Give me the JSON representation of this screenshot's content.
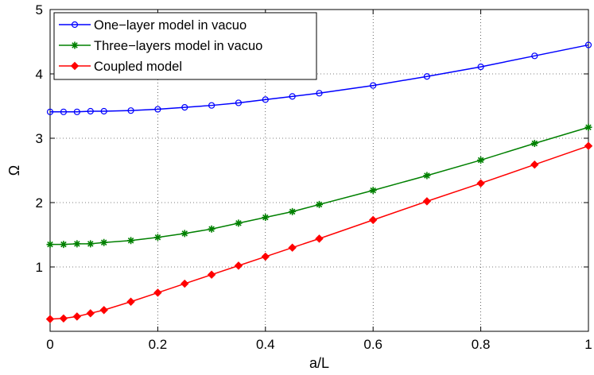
{
  "chart_data": {
    "type": "line",
    "title": "",
    "xlabel": "a/L",
    "ylabel": "Ω",
    "xlim": [
      0,
      1
    ],
    "ylim": [
      0,
      5
    ],
    "xticks": [
      0,
      0.2,
      0.4,
      0.6,
      0.8,
      1
    ],
    "xtick_labels": [
      "0",
      "0.2",
      "0.4",
      "0.6",
      "0.8",
      "1"
    ],
    "yticks": [
      1,
      2,
      3,
      4,
      5
    ],
    "ytick_labels": [
      "1",
      "2",
      "3",
      "4",
      "5"
    ],
    "grid": true,
    "legend_position": "top-left",
    "x": [
      0,
      0.025,
      0.05,
      0.075,
      0.1,
      0.15,
      0.2,
      0.25,
      0.3,
      0.35,
      0.4,
      0.45,
      0.5,
      0.6,
      0.7,
      0.8,
      0.9,
      1.0
    ],
    "series": [
      {
        "name": "One−layer model in vacuo",
        "color": "#0000ff",
        "marker": "circle",
        "values": [
          3.41,
          3.41,
          3.41,
          3.42,
          3.42,
          3.43,
          3.45,
          3.48,
          3.51,
          3.55,
          3.6,
          3.65,
          3.7,
          3.82,
          3.96,
          4.11,
          4.28,
          4.45
        ]
      },
      {
        "name": "Three−layers model in vacuo",
        "color": "#008000",
        "marker": "star",
        "values": [
          1.35,
          1.35,
          1.36,
          1.36,
          1.38,
          1.41,
          1.46,
          1.52,
          1.59,
          1.68,
          1.77,
          1.86,
          1.97,
          2.19,
          2.42,
          2.66,
          2.92,
          3.17
        ]
      },
      {
        "name": "Coupled model",
        "color": "#ff0000",
        "marker": "diamond",
        "values": [
          0.19,
          0.2,
          0.23,
          0.28,
          0.33,
          0.46,
          0.6,
          0.74,
          0.88,
          1.02,
          1.16,
          1.3,
          1.44,
          1.73,
          2.02,
          2.3,
          2.59,
          2.88
        ]
      }
    ]
  }
}
